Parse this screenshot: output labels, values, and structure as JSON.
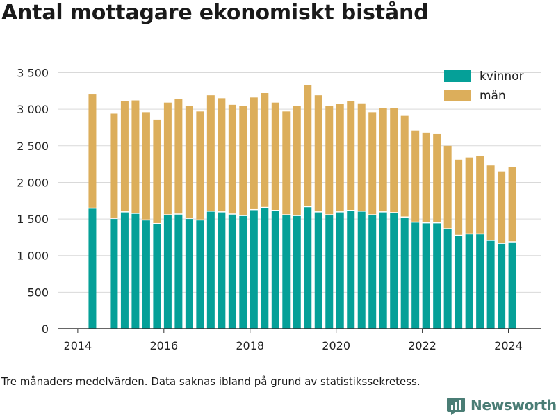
{
  "title": "Antal mottagare ekonomiskt bistånd",
  "footnote": "Tre månaders medelvärden. Data saknas ibland på grund av statistikssekretess.",
  "brand": {
    "name": "Newsworthy",
    "icon": "bar-chart-logo-icon",
    "color": "#4a7d75"
  },
  "colors": {
    "kvinnor": "#05a098",
    "man": "#dcae5b",
    "grid": "#d9d9d9",
    "axis": "#333333"
  },
  "chart_data": {
    "type": "bar",
    "stacked": true,
    "x": [
      2014.34,
      2014.84,
      2015.09,
      2015.34,
      2015.59,
      2015.84,
      2016.09,
      2016.34,
      2016.59,
      2016.84,
      2017.09,
      2017.34,
      2017.59,
      2017.84,
      2018.09,
      2018.34,
      2018.59,
      2018.84,
      2019.09,
      2019.34,
      2019.59,
      2019.84,
      2020.09,
      2020.34,
      2020.59,
      2020.84,
      2021.09,
      2021.34,
      2021.59,
      2021.84,
      2022.09,
      2022.34,
      2022.59,
      2022.84,
      2023.09,
      2023.34,
      2023.59,
      2023.84,
      2024.09
    ],
    "series": [
      {
        "name": "kvinnor",
        "values": [
          1640,
          1500,
          1590,
          1570,
          1480,
          1430,
          1550,
          1560,
          1500,
          1480,
          1600,
          1590,
          1560,
          1540,
          1620,
          1650,
          1610,
          1550,
          1540,
          1660,
          1590,
          1550,
          1590,
          1610,
          1600,
          1550,
          1590,
          1580,
          1520,
          1450,
          1440,
          1440,
          1360,
          1270,
          1290,
          1290,
          1200,
          1160,
          1180
        ]
      },
      {
        "name": "män",
        "values": [
          1570,
          1440,
          1520,
          1550,
          1480,
          1430,
          1540,
          1580,
          1540,
          1490,
          1590,
          1560,
          1500,
          1500,
          1540,
          1570,
          1480,
          1420,
          1500,
          1670,
          1600,
          1490,
          1480,
          1500,
          1480,
          1410,
          1430,
          1440,
          1390,
          1260,
          1240,
          1220,
          1140,
          1040,
          1050,
          1070,
          1030,
          990,
          1030
        ]
      }
    ],
    "xticks": [
      2014,
      2016,
      2018,
      2020,
      2022,
      2024
    ],
    "yticks": [
      0,
      500,
      1000,
      1500,
      2000,
      2500,
      3000,
      3500
    ],
    "ytick_labels": [
      "0",
      "500",
      "1 000",
      "1 500",
      "2 000",
      "2 500",
      "3 000",
      "3 500"
    ],
    "xlim": [
      2013.55,
      2024.75
    ],
    "ylim": [
      0,
      3600
    ],
    "grid": "horizontal",
    "legend_position": "top-right"
  }
}
